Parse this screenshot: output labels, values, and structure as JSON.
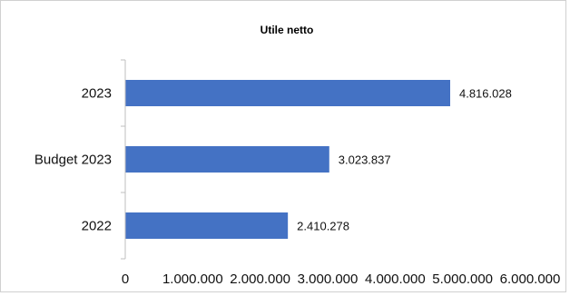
{
  "chart_data": {
    "type": "bar",
    "orientation": "horizontal",
    "title": "Utile netto",
    "categories": [
      "2023",
      "Budget 2023",
      "2022"
    ],
    "values": [
      4816028,
      3023837,
      2410278
    ],
    "data_labels": [
      "4.816.028",
      "3.023.837",
      "2.410.278"
    ],
    "xlim": [
      0,
      6000000
    ],
    "x_ticks": [
      0,
      1000000,
      2000000,
      3000000,
      4000000,
      5000000,
      6000000
    ],
    "x_tick_labels": [
      "0",
      "1.000.000",
      "2.000.000",
      "3.000.000",
      "4.000.000",
      "5.000.000",
      "6.000.000"
    ],
    "bar_color": "#4472C4",
    "grid": false,
    "legend": "none"
  }
}
